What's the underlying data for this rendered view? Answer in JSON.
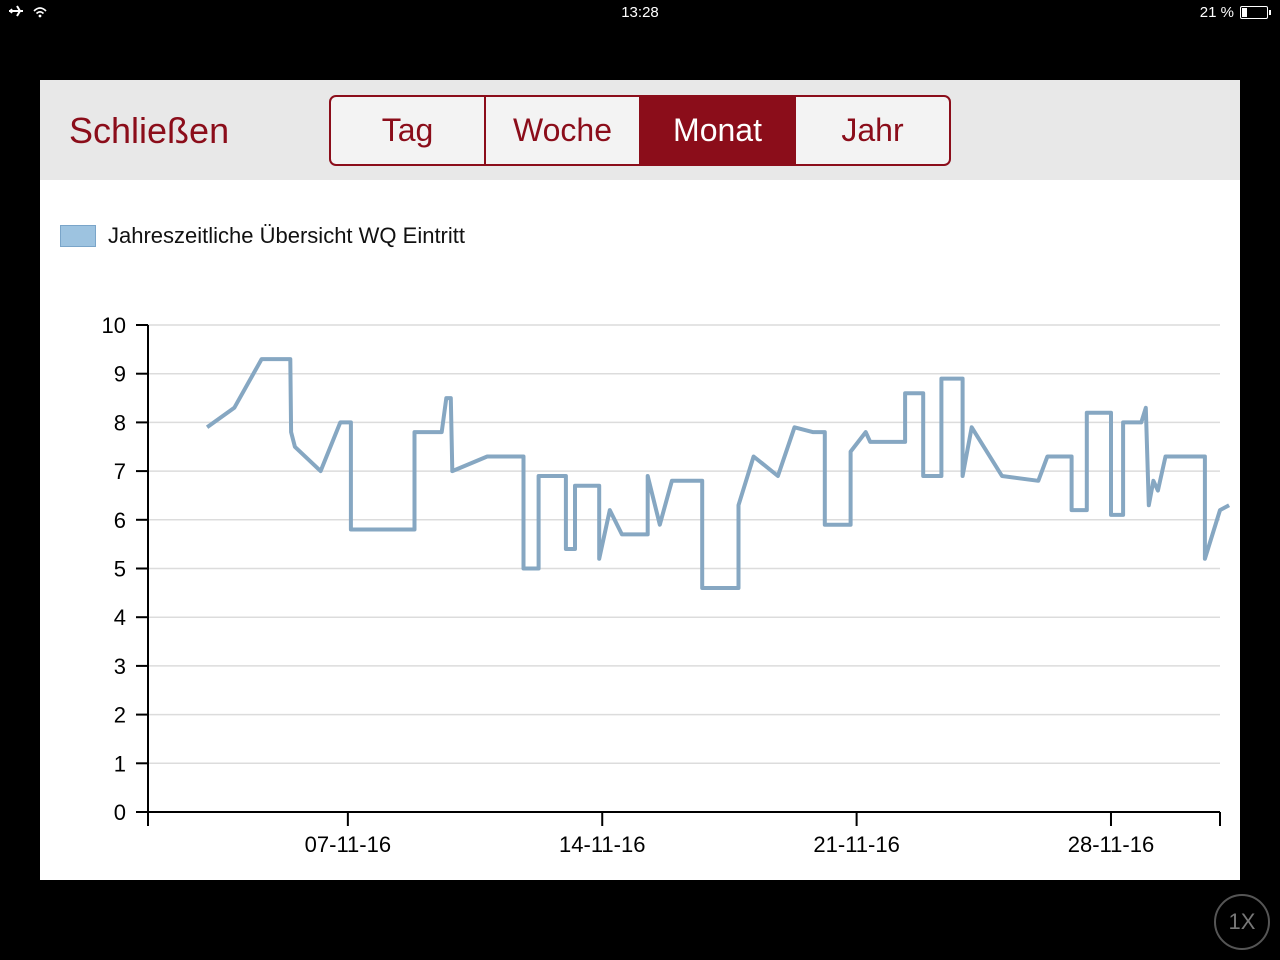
{
  "statusbar": {
    "time": "13:28",
    "battery": "21 %",
    "battery_level": 0.21
  },
  "toolbar": {
    "close_label": "Schließen",
    "tabs": [
      {
        "label": "Tag",
        "active": false
      },
      {
        "label": "Woche",
        "active": false
      },
      {
        "label": "Monat",
        "active": true
      },
      {
        "label": "Jahr",
        "active": false
      }
    ]
  },
  "colors": {
    "accent": "#8b0d1a",
    "series": "#86a7c2",
    "legend_fill": "#9dc3e0"
  },
  "zoom_badge": "1X",
  "chart_data": {
    "type": "line",
    "title": "",
    "xlabel": "",
    "ylabel": "",
    "ylim": [
      0,
      10
    ],
    "xlim": [
      "2016-11-01 12:00",
      "2016-12-01"
    ],
    "grid": true,
    "legend": "top-left",
    "yticks": [
      "0",
      "1",
      "2",
      "3",
      "4",
      "5",
      "6",
      "7",
      "8",
      "9",
      "10"
    ],
    "xticks": [
      {
        "label": "07-11-16",
        "date": "2016-11-07"
      },
      {
        "label": "14-11-16",
        "date": "2016-11-14"
      },
      {
        "label": "21-11-16",
        "date": "2016-11-21"
      },
      {
        "label": "28-11-16",
        "date": "2016-11-28"
      }
    ],
    "series": [
      {
        "name": "Jahreszeitliche Übersicht WQ Eintritt",
        "points": [
          [
            "2016-11-03 03:00",
            7.9
          ],
          [
            "2016-11-03 21:00",
            8.3
          ],
          [
            "2016-11-04 15:00",
            9.3
          ],
          [
            "2016-11-05 10:00",
            9.3
          ],
          [
            "2016-11-05 10:30",
            7.8
          ],
          [
            "2016-11-05 13:00",
            7.5
          ],
          [
            "2016-11-06 06:00",
            7.0
          ],
          [
            "2016-11-06 19:00",
            8.0
          ],
          [
            "2016-11-07 02:00",
            8.0
          ],
          [
            "2016-11-07 02:00",
            5.8
          ],
          [
            "2016-11-08 20:00",
            5.8
          ],
          [
            "2016-11-08 20:00",
            7.8
          ],
          [
            "2016-11-09 14:00",
            7.8
          ],
          [
            "2016-11-09 17:00",
            8.5
          ],
          [
            "2016-11-09 20:00",
            8.5
          ],
          [
            "2016-11-09 21:00",
            7.0
          ],
          [
            "2016-11-10 20:00",
            7.3
          ],
          [
            "2016-11-11 20:00",
            7.3
          ],
          [
            "2016-11-11 20:00",
            5.0
          ],
          [
            "2016-11-12 06:00",
            5.0
          ],
          [
            "2016-11-12 06:00",
            6.9
          ],
          [
            "2016-11-13 00:00",
            6.9
          ],
          [
            "2016-11-13 00:00",
            5.4
          ],
          [
            "2016-11-13 06:00",
            5.4
          ],
          [
            "2016-11-13 06:00",
            6.7
          ],
          [
            "2016-11-13 22:00",
            6.7
          ],
          [
            "2016-11-13 22:00",
            5.2
          ],
          [
            "2016-11-14 05:00",
            6.2
          ],
          [
            "2016-11-14 13:00",
            5.7
          ],
          [
            "2016-11-15 06:00",
            5.7
          ],
          [
            "2016-11-15 06:00",
            6.9
          ],
          [
            "2016-11-15 14:00",
            5.9
          ],
          [
            "2016-11-15 22:00",
            6.8
          ],
          [
            "2016-11-16 18:00",
            6.8
          ],
          [
            "2016-11-16 18:00",
            4.6
          ],
          [
            "2016-11-17 18:00",
            4.6
          ],
          [
            "2016-11-17 18:00",
            6.3
          ],
          [
            "2016-11-18 04:00",
            7.3
          ],
          [
            "2016-11-18 20:00",
            6.9
          ],
          [
            "2016-11-19 07:00",
            7.9
          ],
          [
            "2016-11-19 19:00",
            7.8
          ],
          [
            "2016-11-20 03:00",
            7.8
          ],
          [
            "2016-11-20 03:00",
            5.9
          ],
          [
            "2016-11-20 20:00",
            5.9
          ],
          [
            "2016-11-20 20:00",
            7.4
          ],
          [
            "2016-11-21 06:00",
            7.8
          ],
          [
            "2016-11-21 09:00",
            7.6
          ],
          [
            "2016-11-22 08:00",
            7.6
          ],
          [
            "2016-11-22 08:00",
            8.6
          ],
          [
            "2016-11-22 20:00",
            8.6
          ],
          [
            "2016-11-22 20:00",
            6.9
          ],
          [
            "2016-11-23 08:00",
            6.9
          ],
          [
            "2016-11-23 08:00",
            8.9
          ],
          [
            "2016-11-23 22:00",
            8.9
          ],
          [
            "2016-11-23 22:00",
            6.9
          ],
          [
            "2016-11-24 04:00",
            7.9
          ],
          [
            "2016-11-25 00:00",
            6.9
          ],
          [
            "2016-11-26 00:00",
            6.8
          ],
          [
            "2016-11-26 06:00",
            7.3
          ],
          [
            "2016-11-26 22:00",
            7.3
          ],
          [
            "2016-11-26 22:00",
            6.2
          ],
          [
            "2016-11-27 08:00",
            6.2
          ],
          [
            "2016-11-27 08:00",
            8.2
          ],
          [
            "2016-11-28 00:00",
            8.2
          ],
          [
            "2016-11-28 00:00",
            6.1
          ],
          [
            "2016-11-28 08:00",
            6.1
          ],
          [
            "2016-11-28 08:00",
            8.0
          ],
          [
            "2016-11-28 20:00",
            8.0
          ],
          [
            "2016-11-28 23:00",
            8.3
          ],
          [
            "2016-11-29 01:00",
            6.3
          ],
          [
            "2016-11-29 04:00",
            6.8
          ],
          [
            "2016-11-29 07:00",
            6.6
          ],
          [
            "2016-11-29 12:00",
            7.3
          ],
          [
            "2016-11-30 14:00",
            7.3
          ],
          [
            "2016-11-30 14:00",
            5.2
          ],
          [
            "2016-12-01 00:00",
            6.2
          ],
          [
            "2016-12-01 06:00",
            6.3
          ]
        ]
      }
    ]
  }
}
